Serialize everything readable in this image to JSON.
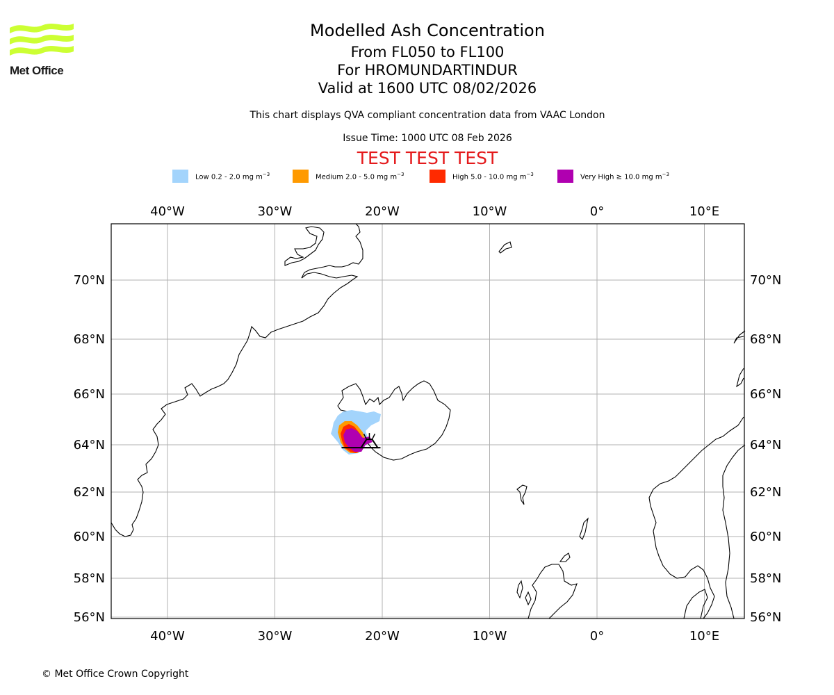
{
  "header": {
    "title": "Modelled Ash Concentration",
    "levels": "From FL050 to FL100",
    "volcano": "For HROMUNDARTINDUR",
    "valid": "Valid at 1600 UTC 08/02/2026",
    "description": "This chart displays QVA compliant concentration data from VAAC London",
    "issue_time": "Issue Time: 1000 UTC 08 Feb 2026",
    "test_banner": "TEST TEST TEST"
  },
  "logo": {
    "text": "Met Office",
    "color": "#ccff33"
  },
  "legend": [
    {
      "label": "Low 0.2 - 2.0 mg m",
      "unit_exp": "−3",
      "color": "#a3d4fc"
    },
    {
      "label": "Medium 2.0 - 5.0 mg m",
      "unit_exp": "−3",
      "color": "#ff9a00"
    },
    {
      "label": "High 5.0 - 10.0 mg m",
      "unit_exp": "−3",
      "color": "#ff2a00"
    },
    {
      "label": "Very High  ≥  10.0 mg m",
      "unit_exp": "−3",
      "color": "#b000b0"
    }
  ],
  "map": {
    "lon_ticks": [
      {
        "lon": -40,
        "label": "40°W"
      },
      {
        "lon": -30,
        "label": "30°W"
      },
      {
        "lon": -20,
        "label": "20°W"
      },
      {
        "lon": -10,
        "label": "10°W"
      },
      {
        "lon": 0,
        "label": "0°"
      },
      {
        "lon": 10,
        "label": "10°E"
      }
    ],
    "lat_ticks": [
      {
        "lat": 70,
        "label": "70°N"
      },
      {
        "lat": 68,
        "label": "68°N"
      },
      {
        "lat": 66,
        "label": "66°N"
      },
      {
        "lat": 64,
        "label": "64°N"
      },
      {
        "lat": 62,
        "label": "62°N"
      },
      {
        "lat": 60,
        "label": "60°N"
      },
      {
        "lat": 58,
        "label": "58°N"
      },
      {
        "lat": 56,
        "label": "56°N"
      }
    ],
    "volcano_location": {
      "lon": -21.2,
      "lat": 64.05
    },
    "grid_color": "#b0b0b0"
  },
  "footer": {
    "copyright": "© Met Office Crown Copyright"
  }
}
